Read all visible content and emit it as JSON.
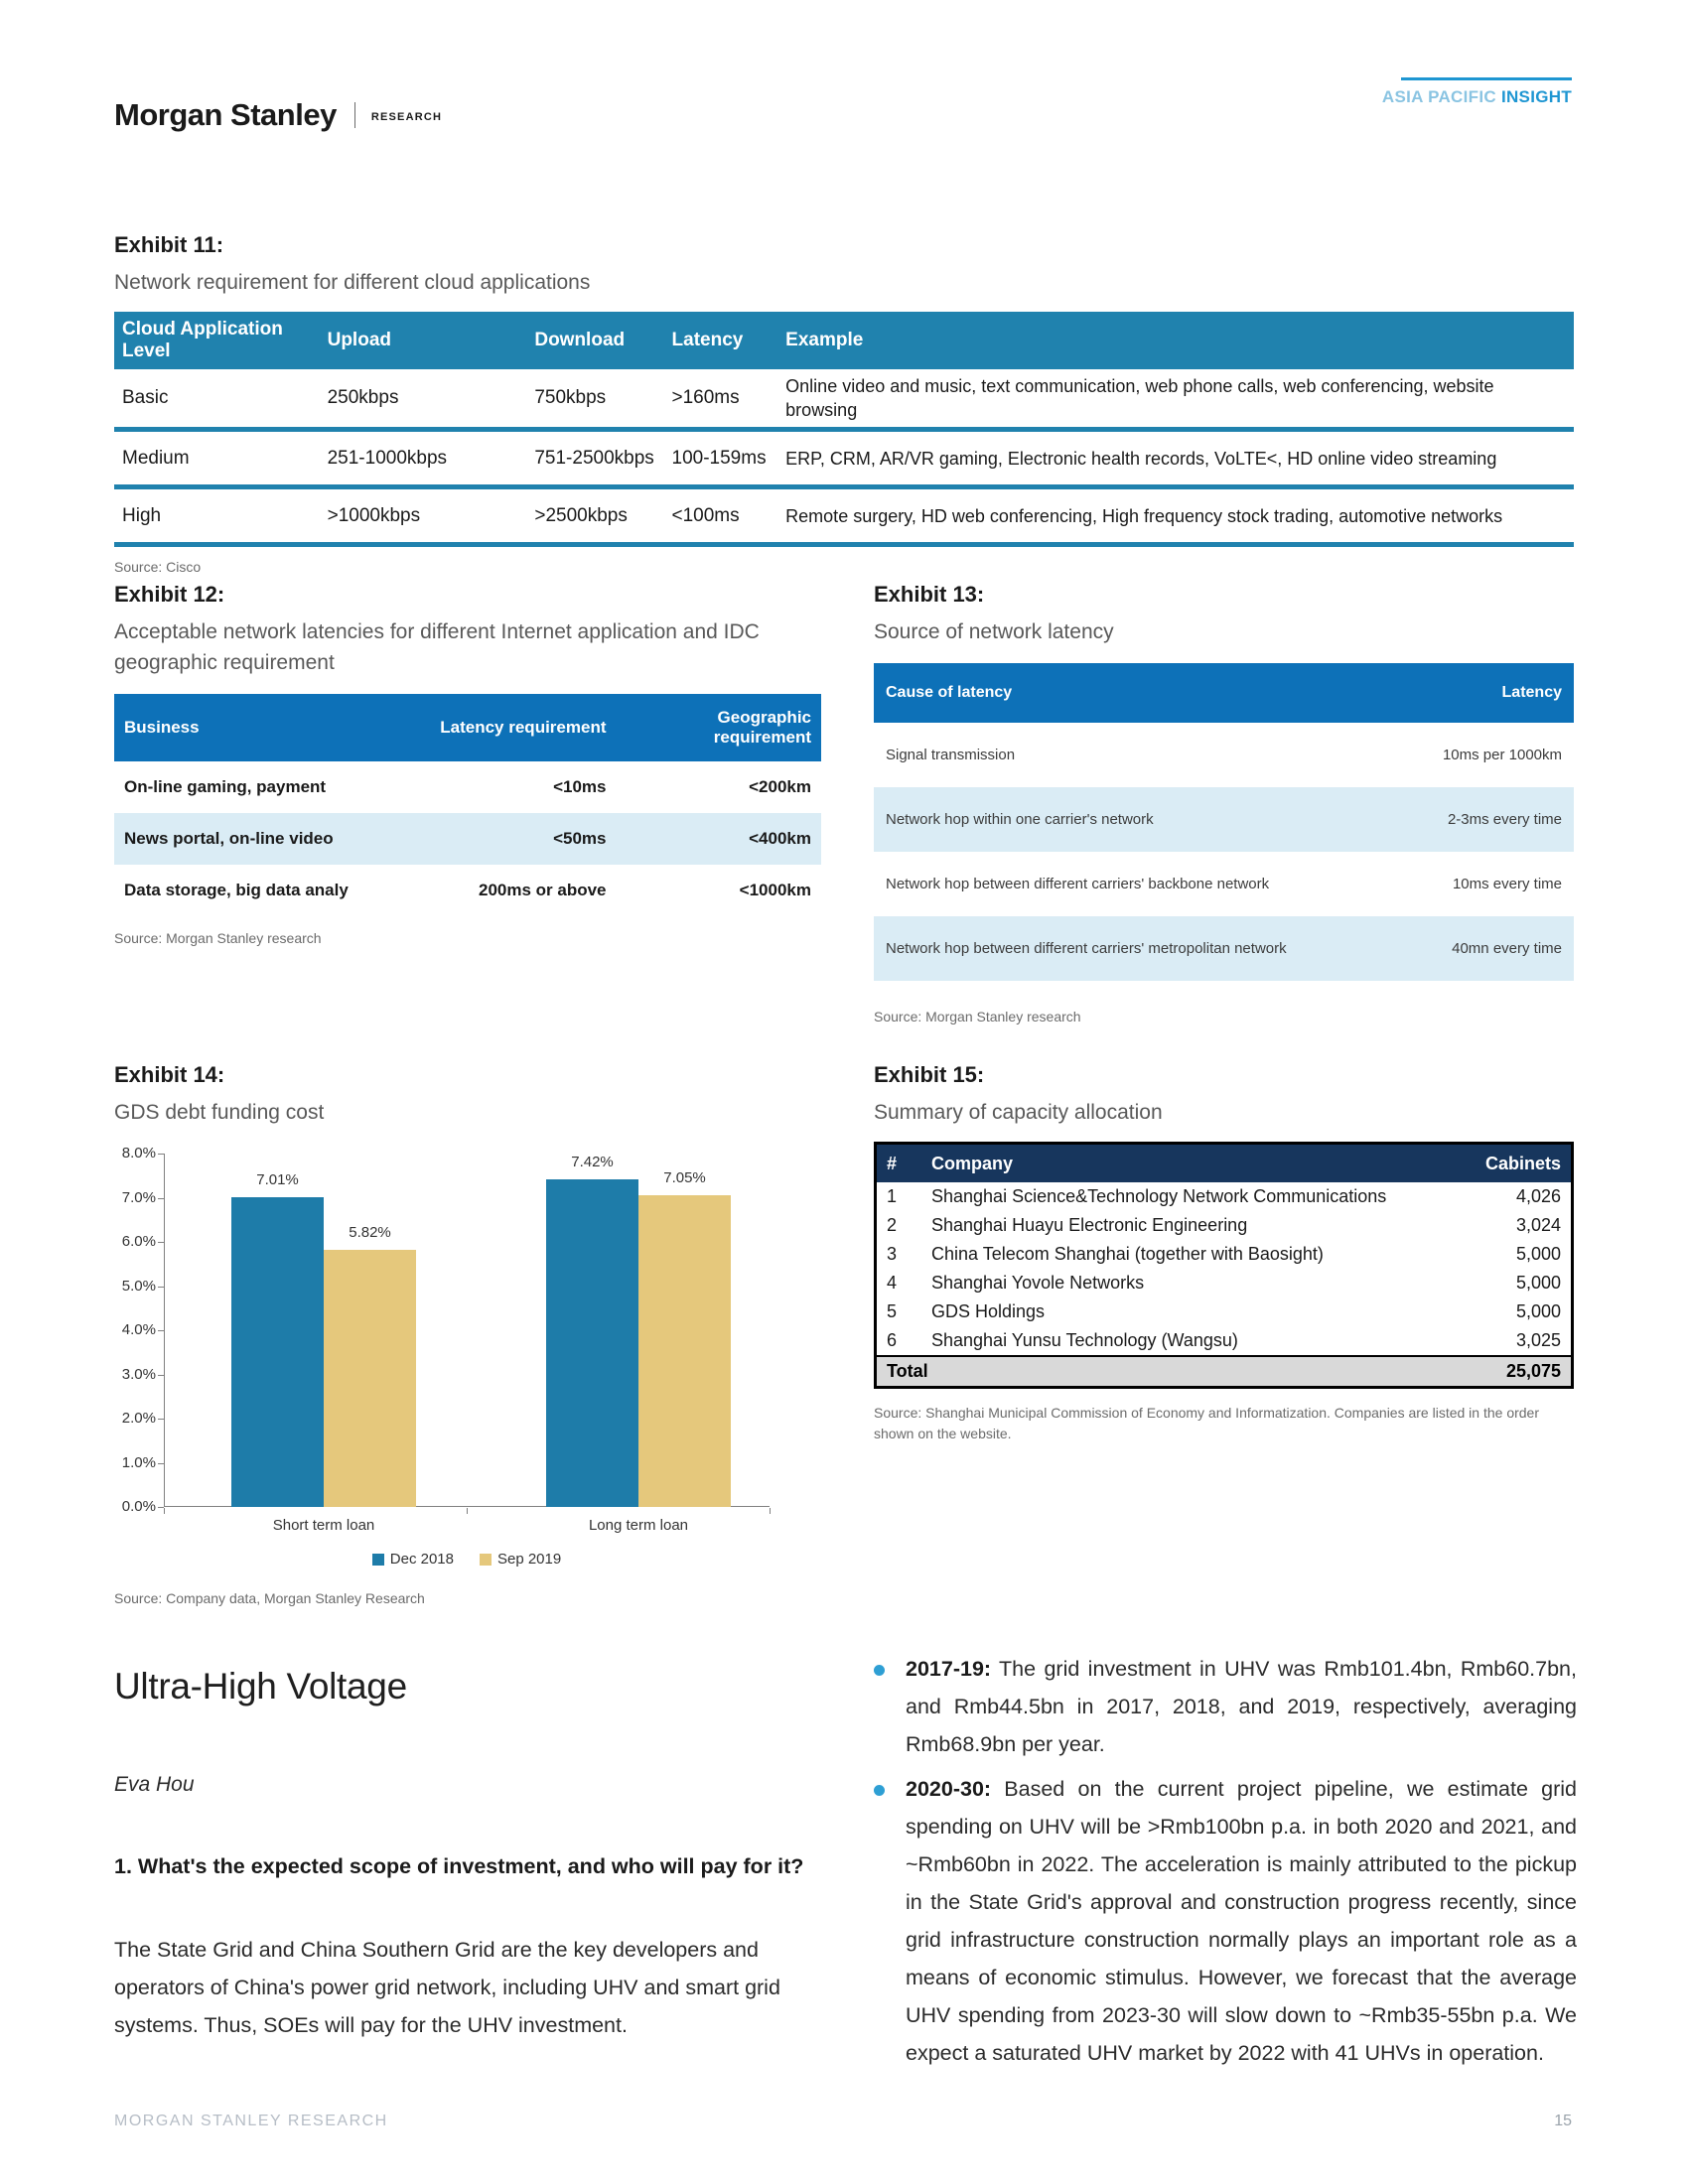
{
  "header": {
    "brand": "Morgan Stanley",
    "research_label": "RESEARCH",
    "region_light": "ASIA PACIFIC ",
    "region_dark": "INSIGHT"
  },
  "colors": {
    "exhibit11_header": "#2082ae",
    "exhibit12_13_header": "#0d71b8",
    "row_alt_blue": "#daecf5",
    "exhibit15_header": "#17365d",
    "accent_blue": "#1e96d2",
    "bar_blue": "#1e7ca9",
    "bar_tan": "#e5c87c",
    "bullet_dot": "#2e9fd4"
  },
  "exhibit11": {
    "title": "Exhibit 11:",
    "subtitle": "Network requirement for different cloud applications",
    "columns": [
      "Cloud Application Level",
      "Upload",
      "Download",
      "Latency",
      "Example"
    ],
    "rows": [
      [
        "Basic",
        "250kbps",
        "750kbps",
        ">160ms",
        "Online video and music, text communication, web phone calls, web conferencing, website browsing"
      ],
      [
        "Medium",
        "251-1000kbps",
        "751-2500kbps",
        "100-159ms",
        "ERP, CRM, AR/VR gaming, Electronic health records, VoLTE<, HD online video streaming"
      ],
      [
        "High",
        ">1000kbps",
        ">2500kbps",
        "<100ms",
        "Remote surgery, HD web conferencing, High frequency stock trading, automotive networks"
      ]
    ],
    "source": "Source: Cisco"
  },
  "exhibit12": {
    "title": "Exhibit 12:",
    "subtitle": "Acceptable network latencies for different Internet application and IDC geographic requirement",
    "columns": [
      "Business",
      "Latency requirement",
      "Geographic requirement"
    ],
    "rows": [
      [
        "On-line gaming, payment",
        "<10ms",
        "<200km"
      ],
      [
        "News portal, on-line video",
        "<50ms",
        "<400km"
      ],
      [
        "Data storage, big data analy",
        "200ms or above",
        "<1000km"
      ]
    ],
    "source": "Source: Morgan Stanley research"
  },
  "exhibit13": {
    "title": "Exhibit 13:",
    "subtitle": "Source of network latency",
    "columns": [
      "Cause of latency",
      "Latency"
    ],
    "rows": [
      [
        "Signal transmission",
        "10ms per 1000km"
      ],
      [
        "Network hop within one carrier's network",
        "2-3ms every time"
      ],
      [
        "Network hop between different carriers' backbone network",
        "10ms every time"
      ],
      [
        "Network hop between different carriers' metropolitan network",
        "40mn every time"
      ]
    ],
    "source": "Source: Morgan Stanley research"
  },
  "exhibit14": {
    "title": "Exhibit 14:",
    "subtitle": "GDS debt funding cost",
    "source": "Source: Company data, Morgan Stanley Research"
  },
  "chart_data": {
    "type": "bar",
    "title": "GDS debt funding cost",
    "categories": [
      "Short term loan",
      "Long term loan"
    ],
    "series": [
      {
        "name": "Dec 2018",
        "color": "#1e7ca9",
        "values": [
          7.01,
          7.42
        ],
        "labels": [
          "7.01%",
          "7.42%"
        ]
      },
      {
        "name": "Sep 2019",
        "color": "#e5c87c",
        "values": [
          5.82,
          7.05
        ],
        "labels": [
          "5.82%",
          "7.05%"
        ]
      }
    ],
    "xlabel": "",
    "ylabel": "",
    "ylim": [
      0,
      8
    ],
    "ytick_step": 1,
    "ytick_labels": [
      "0.0%",
      "1.0%",
      "2.0%",
      "3.0%",
      "4.0%",
      "5.0%",
      "6.0%",
      "7.0%",
      "8.0%"
    ],
    "grid": false,
    "legend_position": "bottom"
  },
  "exhibit15": {
    "title": "Exhibit 15:",
    "subtitle": "Summary of capacity allocation",
    "columns": [
      "#",
      "Company",
      "Cabinets"
    ],
    "rows": [
      [
        "1",
        "Shanghai Science&Technology Network Communications",
        "4,026"
      ],
      [
        "2",
        "Shanghai Huayu Electronic Engineering",
        "3,024"
      ],
      [
        "3",
        "China Telecom Shanghai (together with Baosight)",
        "5,000"
      ],
      [
        "4",
        "Shanghai Yovole Networks",
        "5,000"
      ],
      [
        "5",
        "GDS Holdings",
        "5,000"
      ],
      [
        "6",
        "Shanghai Yunsu Technology (Wangsu)",
        "3,025"
      ]
    ],
    "total_label": "Total",
    "total_value": "25,075",
    "source": "Source: Shanghai Municipal Commission of Economy and Informatization. Companies are listed in the order shown on the website."
  },
  "section": {
    "heading": "Ultra-High Voltage",
    "author": "Eva Hou",
    "question": "1. What's the expected scope of investment, and who will pay for it?",
    "paragraph": "The State Grid and China Southern Grid are the key developers and operators of China's power grid network, including UHV and smart grid systems. Thus, SOEs will pay for the UHV investment.",
    "bullets": [
      {
        "lead": "2017-19:",
        "text": "The grid investment in UHV was Rmb101.4bn, Rmb60.7bn, and Rmb44.5bn in 2017, 2018, and 2019, respectively, averaging Rmb68.9bn per year."
      },
      {
        "lead": "2020-30:",
        "text": "Based on the current project pipeline, we estimate grid spending on UHV will be >Rmb100bn p.a. in both 2020 and 2021, and ~Rmb60bn in 2022. The acceleration is mainly attributed to the pickup in the State Grid's approval and construction progress recently, since grid infrastructure construction normally plays an important role as a means of economic stimulus. However, we forecast that the average UHV spending from 2023-30 will slow down to ~Rmb35-55bn p.a. We expect a saturated UHV market by 2022 with 41 UHVs in operation."
      }
    ]
  },
  "footer": {
    "left": "MORGAN STANLEY RESEARCH",
    "page": "15"
  }
}
